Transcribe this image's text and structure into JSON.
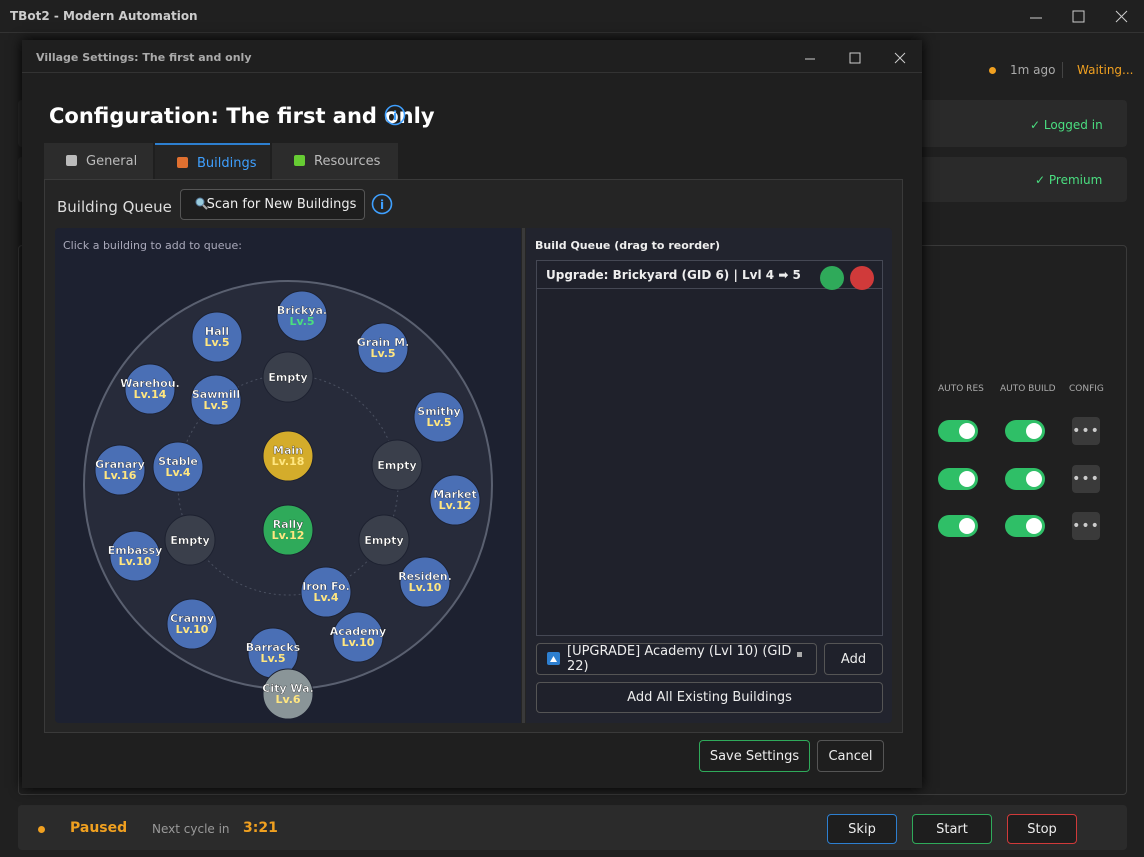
{
  "app": {
    "title": "TBot2 - Modern Automation",
    "last_update": "1m ago",
    "status": "Waiting...",
    "login": "✓ Logged in",
    "premium": "✓ Premium",
    "columns": [
      "AUTO RES",
      "AUTO BUILD",
      "CONFIG"
    ],
    "footer": {
      "state": "Paused",
      "next_label": "Next cycle in",
      "next_time": "3:21",
      "buttons": [
        "Skip",
        "Start",
        "Stop"
      ]
    }
  },
  "dialog": {
    "window_title": "Village Settings: The first and only",
    "heading": "Configuration: The first and only",
    "tabs": [
      "General",
      "Buildings",
      "Resources"
    ],
    "active_tab": 1,
    "section_title": "Building Queue",
    "scan_button": "Scan for New Buildings",
    "map_hint": "Click a building to add to queue:",
    "buildings": [
      {
        "name": "Brickya.",
        "level": "Lv.5",
        "color": "#4a6fb5",
        "level_color": "#4ade80"
      },
      {
        "name": "Hall",
        "level": "Lv.5",
        "color": "#4a6fb5"
      },
      {
        "name": "Grain M.",
        "level": "Lv.5",
        "color": "#4a6fb5"
      },
      {
        "name": "Warehou.",
        "level": "Lv.14",
        "color": "#4a6fb5"
      },
      {
        "name": "Sawmill",
        "level": "Lv.5",
        "color": "#4a6fb5"
      },
      {
        "name": "Empty",
        "color": "#3a3f4b"
      },
      {
        "name": "Smithy",
        "level": "Lv.5",
        "color": "#4a6fb5"
      },
      {
        "name": "Main",
        "level": "Lv.18",
        "color": "#d4ac2b"
      },
      {
        "name": "Granary",
        "level": "Lv.16",
        "color": "#4a6fb5"
      },
      {
        "name": "Stable",
        "level": "Lv.4",
        "color": "#4a6fb5"
      },
      {
        "name": "Empty",
        "color": "#3a3f4b"
      },
      {
        "name": "Market",
        "level": "Lv.12",
        "color": "#4a6fb5"
      },
      {
        "name": "Rally",
        "level": "Lv.12",
        "color": "#2faa5a"
      },
      {
        "name": "Embassy",
        "level": "Lv.10",
        "color": "#4a6fb5"
      },
      {
        "name": "Empty",
        "color": "#3a3f4b"
      },
      {
        "name": "Empty",
        "color": "#3a3f4b"
      },
      {
        "name": "Residen.",
        "level": "Lv.10",
        "color": "#4a6fb5"
      },
      {
        "name": "Iron Fo.",
        "level": "Lv.4",
        "color": "#4a6fb5"
      },
      {
        "name": "Academy",
        "level": "Lv.10",
        "color": "#4a6fb5"
      },
      {
        "name": "Cranny",
        "level": "Lv.10",
        "color": "#4a6fb5"
      },
      {
        "name": "Barracks",
        "level": "Lv.5",
        "color": "#4a6fb5"
      },
      {
        "name": "City Wa.",
        "level": "Lv.6",
        "color": "#8a9598"
      }
    ],
    "queue_title": "Build Queue (drag to reorder)",
    "queue_items": [
      "Upgrade: Brickyard (GID 6) | Lvl 4 ➡ 5"
    ],
    "select_value": "[UPGRADE] Academy (Lvl 10) (GID 22)",
    "add_button": "Add",
    "add_all_button": "Add All Existing Buildings",
    "save_button": "Save Settings",
    "cancel_button": "Cancel"
  }
}
